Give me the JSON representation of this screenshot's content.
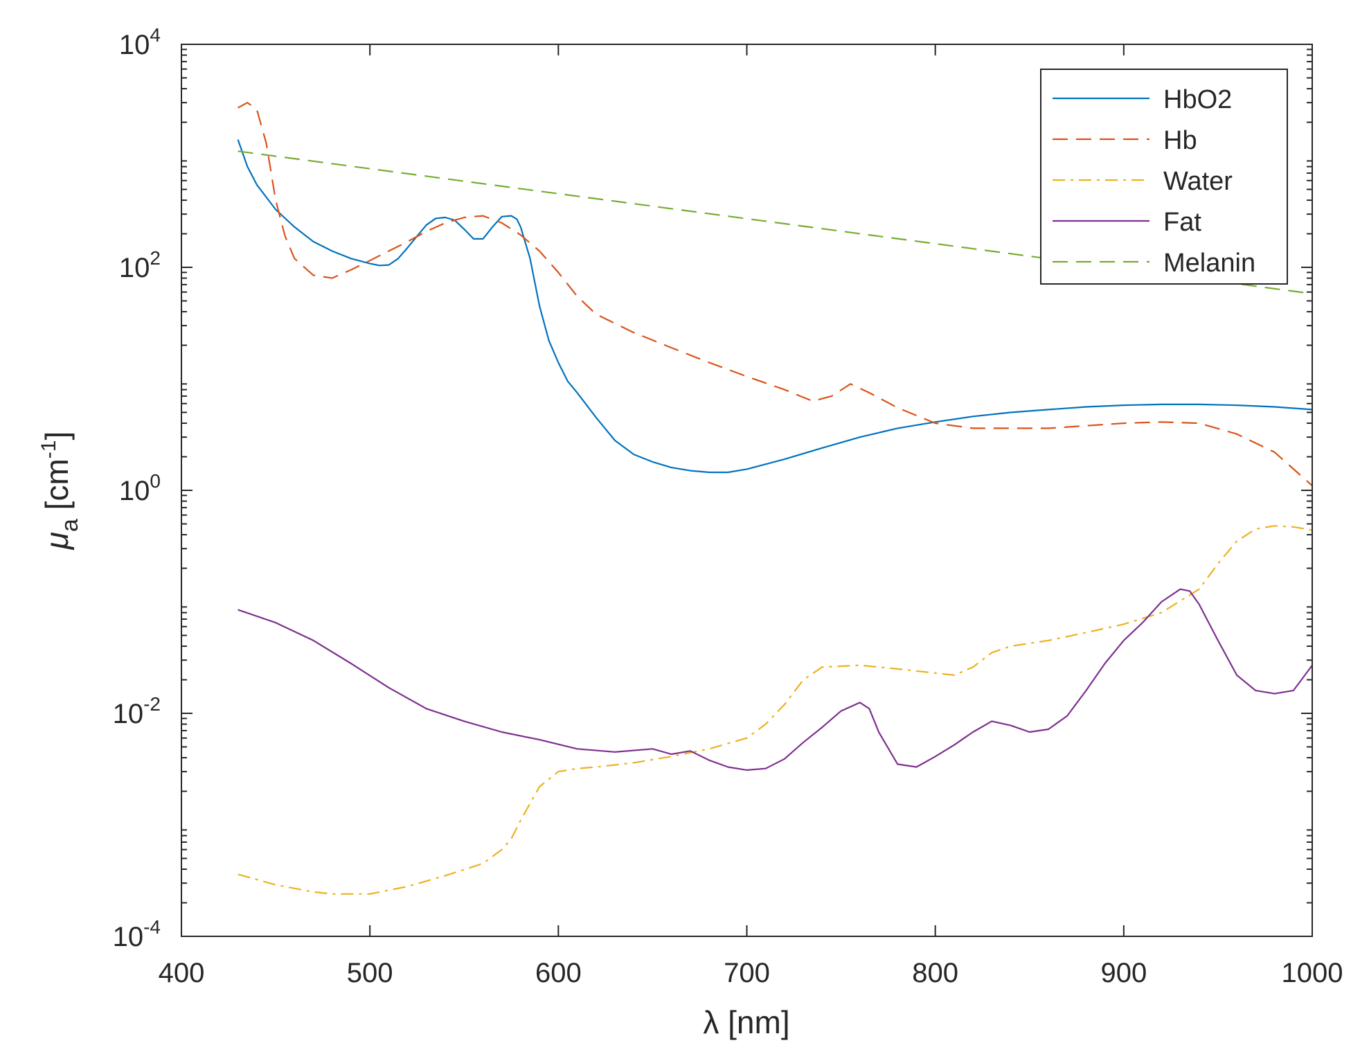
{
  "chart_data": {
    "type": "line",
    "xlabel": "λ [nm]",
    "ylabel": {
      "symbol": "μ",
      "subscript": "a",
      "unit_open": " [cm",
      "unit_exp": "-1",
      "unit_close": "]"
    },
    "xlim": [
      400,
      1000
    ],
    "ylim": [
      0.0001,
      10000
    ],
    "yscale": "log",
    "grid": false,
    "legend_position": "top-right",
    "x_ticks": [
      "400",
      "500",
      "600",
      "700",
      "800",
      "900",
      "1000"
    ],
    "y_ticks": [
      {
        "base": "10",
        "exp": "-4"
      },
      {
        "base": "10",
        "exp": "-2"
      },
      {
        "base": "10",
        "exp": "0"
      },
      {
        "base": "10",
        "exp": "2"
      },
      {
        "base": "10",
        "exp": "4"
      }
    ],
    "series": [
      {
        "name": "HbO2",
        "color": "#0072BD",
        "style": "solid",
        "x": [
          430,
          435,
          440,
          450,
          460,
          470,
          480,
          490,
          500,
          505,
          510,
          515,
          520,
          525,
          530,
          535,
          540,
          545,
          550,
          555,
          560,
          565,
          570,
          575,
          578,
          580,
          585,
          590,
          595,
          600,
          605,
          610,
          620,
          630,
          640,
          650,
          660,
          670,
          680,
          690,
          700,
          720,
          740,
          760,
          780,
          800,
          820,
          840,
          860,
          880,
          900,
          920,
          940,
          960,
          980,
          1000
        ],
        "y": [
          1400,
          800,
          550,
          330,
          230,
          170,
          140,
          120,
          108,
          104,
          105,
          120,
          150,
          190,
          240,
          275,
          280,
          265,
          220,
          180,
          180,
          230,
          285,
          290,
          270,
          230,
          120,
          45,
          22,
          14,
          9.5,
          7.5,
          4.5,
          2.8,
          2.1,
          1.8,
          1.6,
          1.5,
          1.45,
          1.45,
          1.55,
          1.9,
          2.4,
          3,
          3.6,
          4.1,
          4.6,
          5,
          5.3,
          5.6,
          5.8,
          5.9,
          5.9,
          5.8,
          5.6,
          5.3
        ]
      },
      {
        "name": "Hb",
        "color": "#D95319",
        "style": "dash",
        "x": [
          430,
          435,
          440,
          445,
          450,
          455,
          460,
          470,
          480,
          490,
          500,
          510,
          520,
          530,
          540,
          550,
          560,
          570,
          580,
          590,
          600,
          610,
          620,
          640,
          660,
          680,
          700,
          720,
          735,
          745,
          755,
          765,
          780,
          800,
          820,
          840,
          860,
          880,
          900,
          920,
          940,
          960,
          980,
          1000
        ],
        "y": [
          2700,
          3000,
          2600,
          1300,
          400,
          190,
          120,
          85,
          80,
          95,
          115,
          140,
          170,
          210,
          250,
          280,
          290,
          250,
          195,
          140,
          90,
          55,
          38,
          26,
          19,
          14,
          10.5,
          8,
          6.3,
          7,
          9,
          7.5,
          5.5,
          4,
          3.6,
          3.6,
          3.6,
          3.8,
          4,
          4.1,
          4,
          3.2,
          2.2,
          1.1
        ]
      },
      {
        "name": "Water",
        "color": "#EDB120",
        "style": "dashdot",
        "x": [
          430,
          450,
          470,
          480,
          500,
          520,
          540,
          560,
          570,
          575,
          580,
          590,
          600,
          610,
          620,
          640,
          660,
          680,
          700,
          710,
          720,
          730,
          740,
          760,
          780,
          800,
          810,
          820,
          830,
          840,
          860,
          880,
          900,
          920,
          940,
          950,
          960,
          970,
          980,
          990,
          1000
        ],
        "y": [
          0.00036,
          0.00029,
          0.00025,
          0.00024,
          0.00024,
          0.00028,
          0.00035,
          0.00045,
          0.0006,
          0.00075,
          0.0011,
          0.0022,
          0.003,
          0.0032,
          0.0033,
          0.0036,
          0.0041,
          0.0048,
          0.006,
          0.008,
          0.012,
          0.02,
          0.026,
          0.027,
          0.025,
          0.023,
          0.022,
          0.026,
          0.035,
          0.04,
          0.045,
          0.053,
          0.063,
          0.08,
          0.13,
          0.22,
          0.35,
          0.45,
          0.48,
          0.47,
          0.44
        ]
      },
      {
        "name": "Fat",
        "color": "#7E2F8E",
        "style": "solid",
        "x": [
          430,
          450,
          470,
          490,
          510,
          530,
          550,
          570,
          590,
          610,
          630,
          650,
          660,
          670,
          680,
          690,
          700,
          710,
          720,
          730,
          740,
          750,
          760,
          765,
          770,
          780,
          790,
          800,
          810,
          820,
          830,
          840,
          850,
          860,
          870,
          880,
          890,
          900,
          910,
          920,
          930,
          935,
          940,
          950,
          960,
          970,
          980,
          990,
          1000
        ],
        "y": [
          0.085,
          0.065,
          0.045,
          0.028,
          0.017,
          0.011,
          0.0085,
          0.0068,
          0.0058,
          0.0048,
          0.0045,
          0.0048,
          0.0043,
          0.0046,
          0.0038,
          0.0033,
          0.0031,
          0.0032,
          0.0039,
          0.0055,
          0.0075,
          0.0105,
          0.0125,
          0.011,
          0.0068,
          0.0035,
          0.0033,
          0.0041,
          0.0052,
          0.0068,
          0.0085,
          0.0078,
          0.0068,
          0.0072,
          0.0095,
          0.016,
          0.028,
          0.045,
          0.065,
          0.1,
          0.13,
          0.125,
          0.095,
          0.045,
          0.022,
          0.016,
          0.015,
          0.016,
          0.027
        ]
      },
      {
        "name": "Melanin",
        "color": "#77AC30",
        "style": "dash",
        "x": [
          430,
          1000
        ],
        "y": [
          1100,
          58
        ]
      }
    ]
  }
}
